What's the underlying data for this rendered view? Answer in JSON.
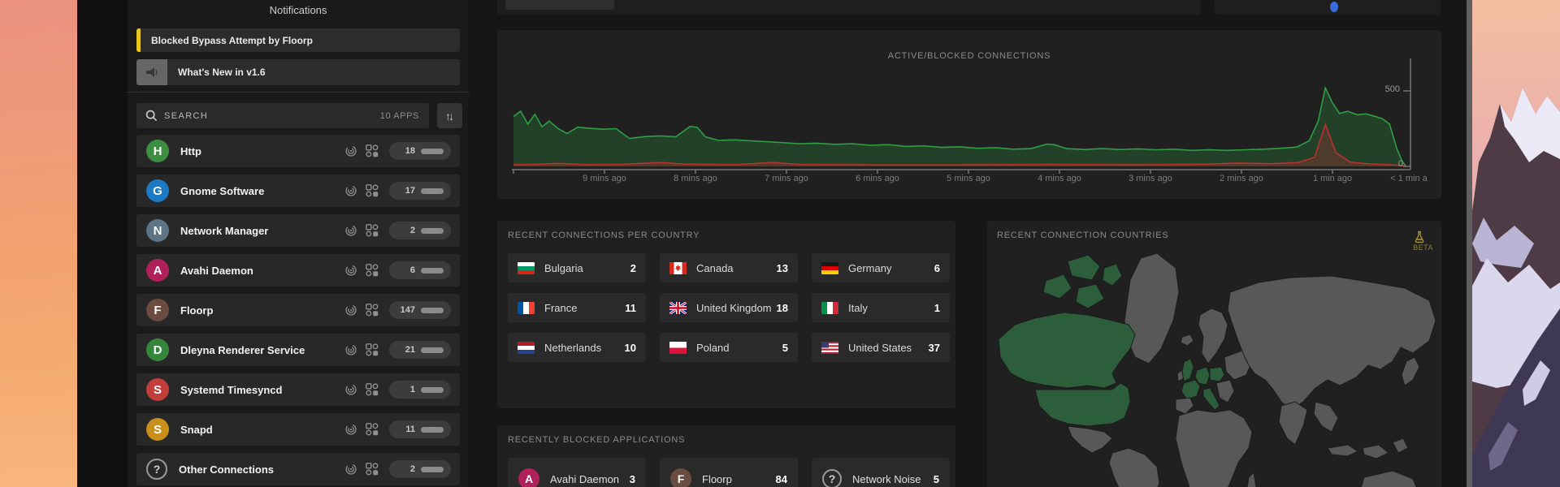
{
  "sidebar": {
    "icons": [
      {
        "name": "monitor"
      },
      {
        "name": "apps"
      },
      {
        "name": "network"
      },
      {
        "name": "settings"
      },
      {
        "name": "help"
      }
    ]
  },
  "apps_panel": {
    "header": "Notifications",
    "notifications": [
      {
        "label": "Blocked Bypass Attempt by Floorp",
        "accent": "#e8c51c"
      },
      {
        "label": "What's New in v1.6"
      }
    ],
    "search": {
      "placeholder": "SEARCH",
      "count_label": "10 APPS"
    },
    "apps": [
      {
        "initial": "H",
        "name": "Http",
        "count": "18",
        "color": "#3e8e41",
        "allowed_ratio": 1
      },
      {
        "initial": "G",
        "name": "Gnome Software",
        "count": "17",
        "color": "#1c79c4",
        "allowed_ratio": 1
      },
      {
        "initial": "N",
        "name": "Network Manager",
        "count": "2",
        "color": "#5c7484",
        "allowed_ratio": 1
      },
      {
        "initial": "A",
        "name": "Avahi Daemon",
        "count": "6",
        "color": "#b0205a",
        "allowed_ratio": 0.58
      },
      {
        "initial": "F",
        "name": "Floorp",
        "count": "147",
        "color": "#6a4c41",
        "allowed_ratio": 0.52
      },
      {
        "initial": "D",
        "name": "Dleyna Renderer Service",
        "count": "21",
        "color": "#35863b",
        "allowed_ratio": 1
      },
      {
        "initial": "S",
        "name": "Systemd Timesyncd",
        "count": "1",
        "color": "#c13e3a",
        "allowed_ratio": 1
      },
      {
        "initial": "S",
        "name": "Snapd",
        "count": "11",
        "color": "#c98f1b",
        "allowed_ratio": 1
      },
      {
        "initial": "?",
        "name": "Other Connections",
        "count": "2",
        "color": "",
        "allowed_ratio": 1
      }
    ]
  },
  "chart_data": {
    "type": "area",
    "title": "ACTIVE/BLOCKED CONNECTIONS",
    "x_labels": [
      "9 mins ago",
      "8 mins ago",
      "7 mins ago",
      "6 mins ago",
      "5 mins ago",
      "4 mins ago",
      "3 mins ago",
      "2 mins ago",
      "1 min ago",
      "< 1 min a"
    ],
    "y_ticks": [
      {
        "label": "500",
        "value": 500
      },
      {
        "label": "0",
        "value": 0
      }
    ],
    "ylim": [
      0,
      740
    ],
    "legend": "none",
    "series": [
      {
        "name": "active",
        "color": "#2f9e44",
        "fill": "rgba(47,158,68,0.26)",
        "points": [
          [
            0.0,
            330
          ],
          [
            0.008,
            366
          ],
          [
            0.016,
            280
          ],
          [
            0.024,
            345
          ],
          [
            0.032,
            262
          ],
          [
            0.04,
            300
          ],
          [
            0.05,
            250
          ],
          [
            0.06,
            218
          ],
          [
            0.072,
            260
          ],
          [
            0.085,
            252
          ],
          [
            0.1,
            246
          ],
          [
            0.115,
            250
          ],
          [
            0.13,
            185
          ],
          [
            0.148,
            198
          ],
          [
            0.165,
            202
          ],
          [
            0.182,
            196
          ],
          [
            0.198,
            265
          ],
          [
            0.206,
            258
          ],
          [
            0.215,
            196
          ],
          [
            0.23,
            172
          ],
          [
            0.248,
            176
          ],
          [
            0.265,
            170
          ],
          [
            0.283,
            164
          ],
          [
            0.3,
            158
          ],
          [
            0.32,
            150
          ],
          [
            0.34,
            154
          ],
          [
            0.36,
            146
          ],
          [
            0.38,
            150
          ],
          [
            0.4,
            140
          ],
          [
            0.42,
            144
          ],
          [
            0.44,
            132
          ],
          [
            0.46,
            136
          ],
          [
            0.48,
            126
          ],
          [
            0.5,
            130
          ],
          [
            0.52,
            120
          ],
          [
            0.54,
            124
          ],
          [
            0.56,
            114
          ],
          [
            0.58,
            118
          ],
          [
            0.598,
            148
          ],
          [
            0.606,
            144
          ],
          [
            0.62,
            118
          ],
          [
            0.64,
            112
          ],
          [
            0.66,
            118
          ],
          [
            0.68,
            112
          ],
          [
            0.7,
            116
          ],
          [
            0.72,
            110
          ],
          [
            0.74,
            114
          ],
          [
            0.76,
            106
          ],
          [
            0.78,
            110
          ],
          [
            0.8,
            106
          ],
          [
            0.82,
            110
          ],
          [
            0.84,
            114
          ],
          [
            0.86,
            120
          ],
          [
            0.878,
            128
          ],
          [
            0.892,
            170
          ],
          [
            0.902,
            300
          ],
          [
            0.91,
            520
          ],
          [
            0.918,
            420
          ],
          [
            0.926,
            350
          ],
          [
            0.935,
            365
          ],
          [
            0.946,
            342
          ],
          [
            0.956,
            348
          ],
          [
            0.965,
            332
          ],
          [
            0.974,
            315
          ],
          [
            0.982,
            280
          ],
          [
            0.99,
            120
          ],
          [
            0.996,
            35
          ],
          [
            1.0,
            5
          ]
        ]
      },
      {
        "name": "blocked",
        "color": "#b73131",
        "fill": "rgba(183,49,49,0.30)",
        "points": [
          [
            0.0,
            12
          ],
          [
            0.03,
            14
          ],
          [
            0.05,
            20
          ],
          [
            0.08,
            12
          ],
          [
            0.12,
            13
          ],
          [
            0.165,
            26
          ],
          [
            0.19,
            15
          ],
          [
            0.25,
            12
          ],
          [
            0.29,
            26
          ],
          [
            0.32,
            13
          ],
          [
            0.4,
            11
          ],
          [
            0.5,
            11
          ],
          [
            0.6,
            13
          ],
          [
            0.7,
            11
          ],
          [
            0.78,
            15
          ],
          [
            0.81,
            22
          ],
          [
            0.85,
            18
          ],
          [
            0.88,
            26
          ],
          [
            0.898,
            60
          ],
          [
            0.91,
            278
          ],
          [
            0.922,
            90
          ],
          [
            0.938,
            28
          ],
          [
            0.96,
            16
          ],
          [
            0.98,
            12
          ],
          [
            0.995,
            6
          ],
          [
            1.0,
            2
          ]
        ]
      }
    ]
  },
  "countries_panel": {
    "title": "RECENT CONNECTIONS PER COUNTRY",
    "items": [
      {
        "code": "bg",
        "name": "Bulgaria",
        "count": "2"
      },
      {
        "code": "ca",
        "name": "Canada",
        "count": "13"
      },
      {
        "code": "de",
        "name": "Germany",
        "count": "6"
      },
      {
        "code": "fr",
        "name": "France",
        "count": "11"
      },
      {
        "code": "gb",
        "name": "United Kingdom",
        "count": "18"
      },
      {
        "code": "it",
        "name": "Italy",
        "count": "1"
      },
      {
        "code": "nl",
        "name": "Netherlands",
        "count": "10"
      },
      {
        "code": "pl",
        "name": "Poland",
        "count": "5"
      },
      {
        "code": "us",
        "name": "United States",
        "count": "37"
      }
    ]
  },
  "blocked_panel": {
    "title": "RECENTLY BLOCKED APPLICATIONS",
    "items": [
      {
        "initial": "A",
        "name": "Avahi Daemon",
        "count": "3",
        "color": "#b0205a"
      },
      {
        "initial": "F",
        "name": "Floorp",
        "count": "84",
        "color": "#6a4c41"
      },
      {
        "initial": "?",
        "name": "Network Noise",
        "count": "5",
        "color": ""
      }
    ]
  },
  "map_panel": {
    "title": "RECENT CONNECTION COUNTRIES",
    "beta_label": "BETA",
    "highlight_color": "#2c5e3c",
    "base_color": "#585858",
    "highlighted_regions": [
      "Canada",
      "United States",
      "United Kingdom",
      "France",
      "Netherlands",
      "Germany",
      "Poland",
      "Italy"
    ]
  }
}
